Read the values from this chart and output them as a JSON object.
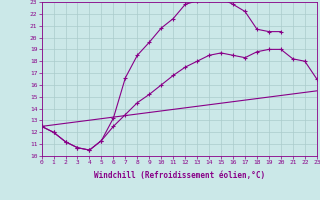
{
  "xlabel": "Windchill (Refroidissement éolien,°C)",
  "xlim": [
    0,
    23
  ],
  "ylim": [
    10,
    23
  ],
  "bg_color": "#cbe8e8",
  "line_color": "#880088",
  "grid_color": "#aacccc",
  "line1_x": [
    0,
    1,
    2,
    3,
    4,
    5,
    6,
    7,
    8,
    9,
    10,
    11,
    12,
    13,
    14,
    15,
    16,
    17,
    18,
    19,
    20
  ],
  "line1_y": [
    12.5,
    12.0,
    11.2,
    10.7,
    10.5,
    11.3,
    13.2,
    16.6,
    18.5,
    19.6,
    20.8,
    21.6,
    22.8,
    23.1,
    23.2,
    23.3,
    22.8,
    22.2,
    20.7,
    20.5,
    20.5
  ],
  "line2_x": [
    0,
    23
  ],
  "line2_y": [
    12.5,
    15.5
  ],
  "line3_x": [
    0,
    1,
    2,
    3,
    4,
    5,
    6,
    7,
    8,
    9,
    10,
    11,
    12,
    13,
    14,
    15,
    16,
    17,
    18,
    19,
    20,
    21,
    22,
    23
  ],
  "line3_y": [
    12.5,
    12.0,
    11.2,
    10.7,
    10.5,
    11.3,
    12.5,
    13.5,
    14.5,
    15.2,
    16.0,
    16.8,
    17.5,
    18.0,
    18.5,
    18.7,
    18.5,
    18.3,
    18.8,
    19.0,
    19.0,
    18.2,
    18.0,
    16.5
  ]
}
